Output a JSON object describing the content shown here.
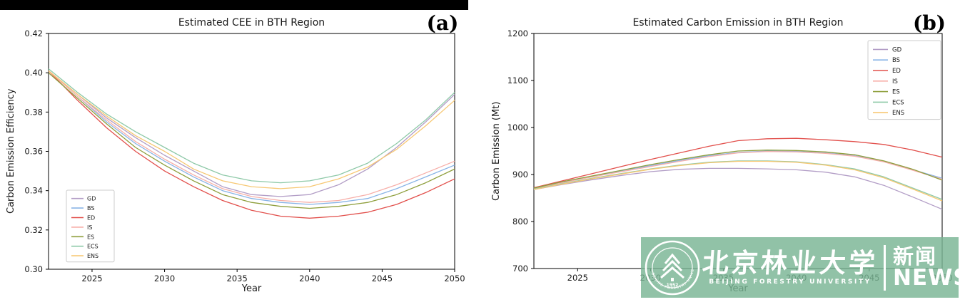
{
  "chart_data": [
    {
      "type": "line",
      "title": "Estimated CEE in BTH Region",
      "panel_label": "(a)",
      "xlabel": "Year",
      "ylabel": "Carbon Emission Efficiency",
      "xlim": [
        2022,
        2050
      ],
      "ylim": [
        0.3,
        0.42
      ],
      "x_ticks": [
        2025,
        2030,
        2035,
        2040,
        2045,
        2050
      ],
      "x_tick_labels": [
        "2025",
        "2030",
        "2035",
        "2040",
        "2045",
        "2050"
      ],
      "y_ticks": [
        0.3,
        0.32,
        0.34,
        0.36,
        0.38,
        0.4,
        0.42
      ],
      "y_tick_labels": [
        "0.30",
        "0.32",
        "0.34",
        "0.36",
        "0.38",
        "0.40",
        "0.42"
      ],
      "grid": false,
      "legend_position": "lower-left",
      "years": [
        2022,
        2024,
        2026,
        2028,
        2030,
        2032,
        2034,
        2036,
        2038,
        2040,
        2042,
        2044,
        2046,
        2048,
        2050
      ],
      "series": [
        {
          "name": "GD",
          "color": "#b29dc6",
          "values": [
            0.401,
            0.389,
            0.377,
            0.367,
            0.358,
            0.35,
            0.342,
            0.338,
            0.337,
            0.338,
            0.343,
            0.351,
            0.362,
            0.375,
            0.389
          ]
        },
        {
          "name": "BS",
          "color": "#89b4e6",
          "values": [
            0.401,
            0.388,
            0.375,
            0.364,
            0.355,
            0.347,
            0.34,
            0.336,
            0.334,
            0.333,
            0.334,
            0.336,
            0.341,
            0.347,
            0.353
          ]
        },
        {
          "name": "ED",
          "color": "#e2504c",
          "values": [
            0.401,
            0.386,
            0.372,
            0.36,
            0.35,
            0.342,
            0.335,
            0.33,
            0.327,
            0.326,
            0.327,
            0.329,
            0.333,
            0.339,
            0.346
          ]
        },
        {
          "name": "IS",
          "color": "#f7afa9",
          "values": [
            0.401,
            0.388,
            0.376,
            0.365,
            0.356,
            0.348,
            0.341,
            0.337,
            0.335,
            0.334,
            0.335,
            0.338,
            0.343,
            0.349,
            0.355
          ]
        },
        {
          "name": "ES",
          "color": "#8f9f3d",
          "values": [
            0.4,
            0.387,
            0.374,
            0.362,
            0.353,
            0.345,
            0.338,
            0.334,
            0.332,
            0.331,
            0.332,
            0.334,
            0.338,
            0.344,
            0.351
          ]
        },
        {
          "name": "ECS",
          "color": "#8ec9a8",
          "values": [
            0.402,
            0.39,
            0.379,
            0.37,
            0.362,
            0.354,
            0.348,
            0.345,
            0.344,
            0.345,
            0.348,
            0.354,
            0.364,
            0.376,
            0.39
          ]
        },
        {
          "name": "ENS",
          "color": "#f7c873",
          "values": [
            0.401,
            0.389,
            0.378,
            0.368,
            0.36,
            0.351,
            0.345,
            0.342,
            0.341,
            0.342,
            0.346,
            0.352,
            0.361,
            0.373,
            0.386
          ]
        }
      ]
    },
    {
      "type": "line",
      "title": "Estimated Carbon Emission in BTH Region",
      "panel_label": "(b)",
      "xlabel": "Year",
      "ylabel": "Carbon Emission (Mt)",
      "xlim": [
        2022,
        2050
      ],
      "ylim": [
        700,
        1200
      ],
      "x_ticks": [
        2025,
        2030,
        2035,
        2040,
        2045,
        2050
      ],
      "x_tick_labels": [
        "2025",
        "2030",
        "2035",
        "2040",
        "2045",
        "2050"
      ],
      "y_ticks": [
        700,
        800,
        900,
        1000,
        1100,
        1200
      ],
      "y_tick_labels": [
        "700",
        "800",
        "900",
        "1000",
        "1100",
        "1200"
      ],
      "grid": false,
      "legend_position": "upper-right",
      "years": [
        2022,
        2024,
        2026,
        2028,
        2030,
        2032,
        2034,
        2036,
        2038,
        2040,
        2042,
        2044,
        2046,
        2048,
        2050
      ],
      "series": [
        {
          "name": "GD",
          "color": "#b29dc6",
          "values": [
            868,
            879,
            889,
            898,
            906,
            911,
            913,
            913,
            912,
            910,
            905,
            895,
            877,
            852,
            826
          ]
        },
        {
          "name": "BS",
          "color": "#89b4e6",
          "values": [
            871,
            884,
            896,
            908,
            919,
            930,
            940,
            947,
            950,
            949,
            946,
            940,
            928,
            910,
            892
          ]
        },
        {
          "name": "ED",
          "color": "#e2504c",
          "values": [
            872,
            887,
            902,
            917,
            932,
            946,
            960,
            972,
            976,
            977,
            974,
            970,
            964,
            952,
            937
          ]
        },
        {
          "name": "IS",
          "color": "#f7afa9",
          "values": [
            870,
            883,
            895,
            906,
            917,
            928,
            938,
            946,
            949,
            948,
            945,
            939,
            927,
            909,
            890
          ]
        },
        {
          "name": "ES",
          "color": "#8f9f3d",
          "values": [
            871,
            885,
            897,
            909,
            921,
            932,
            942,
            950,
            952,
            951,
            948,
            942,
            929,
            911,
            888
          ]
        },
        {
          "name": "ECS",
          "color": "#8ec9a8",
          "values": [
            869,
            881,
            892,
            902,
            912,
            920,
            926,
            929,
            929,
            927,
            921,
            912,
            895,
            871,
            847
          ]
        },
        {
          "name": "ENS",
          "color": "#f7c873",
          "values": [
            868,
            880,
            891,
            901,
            911,
            919,
            925,
            928,
            928,
            926,
            920,
            910,
            893,
            869,
            844
          ]
        }
      ]
    }
  ],
  "decorations": {
    "top_bar_color": "#000000"
  },
  "watermark": {
    "banner_color": "#79b494",
    "university_cn": "北京林业大学",
    "university_en": "BEIJING FORESTRY UNIVERSITY",
    "news_cn": "新闻",
    "news_en": "NEWS",
    "seal_year": "1952",
    "seal_arc_text": "BEIJING FORESTRY UNIVERSITY"
  }
}
